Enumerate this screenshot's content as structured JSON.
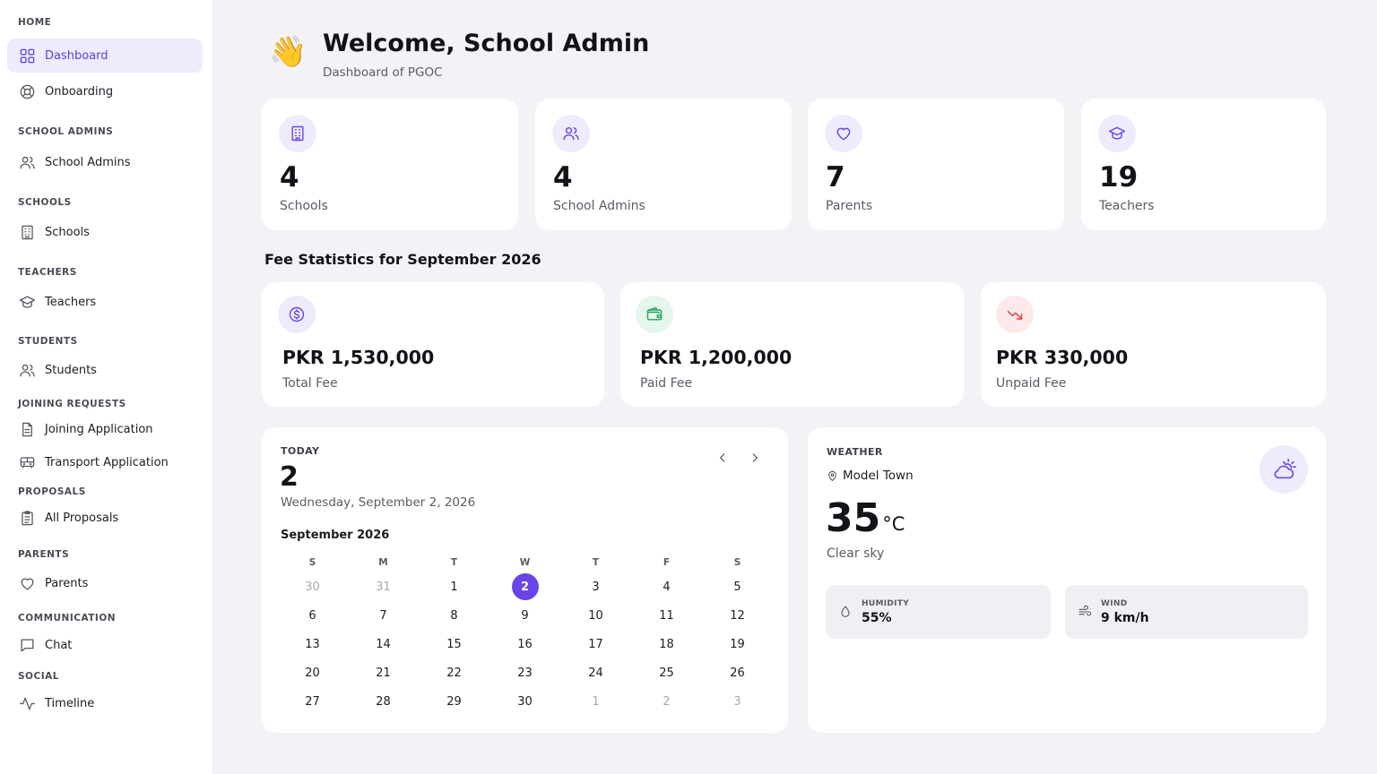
{
  "sidebar": {
    "sections": [
      "HOME",
      "SCHOOL ADMINS",
      "SCHOOLS",
      "TEACHERS",
      "STUDENTS",
      "JOINING REQUESTS",
      "PROPOSALS",
      "PARENTS",
      "COMMUNICATION",
      "SOCIAL"
    ],
    "items": [
      {
        "label": "Dashboard",
        "icon": "grid-icon",
        "active": true
      },
      {
        "label": "Onboarding",
        "icon": "lifebuoy-icon"
      },
      {
        "label": "School Admins",
        "icon": "users-icon"
      },
      {
        "label": "Schools",
        "icon": "building-icon"
      },
      {
        "label": "Teachers",
        "icon": "graduation-cap-icon"
      },
      {
        "label": "Students",
        "icon": "users-icon"
      },
      {
        "label": "Joining Application",
        "icon": "document-icon"
      },
      {
        "label": "Transport Application",
        "icon": "bus-icon"
      },
      {
        "label": "All Proposals",
        "icon": "clipboard-icon"
      },
      {
        "label": "Parents",
        "icon": "heart-icon"
      },
      {
        "label": "Chat",
        "icon": "chat-icon"
      },
      {
        "label": "Timeline",
        "icon": "activity-icon"
      }
    ]
  },
  "header": {
    "wave": "👋",
    "title": "Welcome, School Admin",
    "subtitle": "Dashboard of PGOC"
  },
  "stats": [
    {
      "value": "4",
      "label": "Schools",
      "icon": "building-icon"
    },
    {
      "value": "4",
      "label": "School Admins",
      "icon": "users-icon"
    },
    {
      "value": "7",
      "label": "Parents",
      "icon": "heart-icon"
    },
    {
      "value": "19",
      "label": "Teachers",
      "icon": "graduation-cap-icon"
    }
  ],
  "fee": {
    "title": "Fee Statistics for September 2026",
    "cards": [
      {
        "value": "PKR 1,530,000",
        "label": "Total Fee",
        "icon": "dollar-icon"
      },
      {
        "value": "PKR 1,200,000",
        "label": "Paid Fee",
        "icon": "wallet-icon"
      },
      {
        "value": "PKR 330,000",
        "label": "Unpaid Fee",
        "icon": "trending-down-icon"
      }
    ]
  },
  "calendar": {
    "today_label": "TODAY",
    "day_number": "2",
    "full_date": "Wednesday, September 2, 2026",
    "month_label": "September 2026",
    "weekdays": [
      "S",
      "M",
      "T",
      "W",
      "T",
      "F",
      "S"
    ],
    "days": [
      {
        "d": "30",
        "muted": true
      },
      {
        "d": "31",
        "muted": true
      },
      {
        "d": "1"
      },
      {
        "d": "2",
        "selected": true
      },
      {
        "d": "3"
      },
      {
        "d": "4"
      },
      {
        "d": "5"
      },
      {
        "d": "6"
      },
      {
        "d": "7"
      },
      {
        "d": "8"
      },
      {
        "d": "9"
      },
      {
        "d": "10"
      },
      {
        "d": "11"
      },
      {
        "d": "12"
      },
      {
        "d": "13"
      },
      {
        "d": "14"
      },
      {
        "d": "15"
      },
      {
        "d": "16"
      },
      {
        "d": "17"
      },
      {
        "d": "18"
      },
      {
        "d": "19"
      },
      {
        "d": "20"
      },
      {
        "d": "21"
      },
      {
        "d": "22"
      },
      {
        "d": "23"
      },
      {
        "d": "24"
      },
      {
        "d": "25"
      },
      {
        "d": "26"
      },
      {
        "d": "27"
      },
      {
        "d": "28"
      },
      {
        "d": "29"
      },
      {
        "d": "30"
      },
      {
        "d": "1",
        "muted": true
      },
      {
        "d": "2",
        "muted": true
      },
      {
        "d": "3",
        "muted": true
      }
    ]
  },
  "weather": {
    "title": "WEATHER",
    "location": "Model Town",
    "temp": "35",
    "unit": "°C",
    "condition": "Clear sky",
    "humidity_label": "HUMIDITY",
    "humidity": "55%",
    "wind_label": "WIND",
    "wind": "9 km/h"
  },
  "colors": {
    "accent": "#6a45e6",
    "accent_light": "#eeebfd",
    "green": "#22a35a",
    "green_light": "#e5f6ec",
    "red": "#e23b3b",
    "red_light": "#fde9e9"
  }
}
